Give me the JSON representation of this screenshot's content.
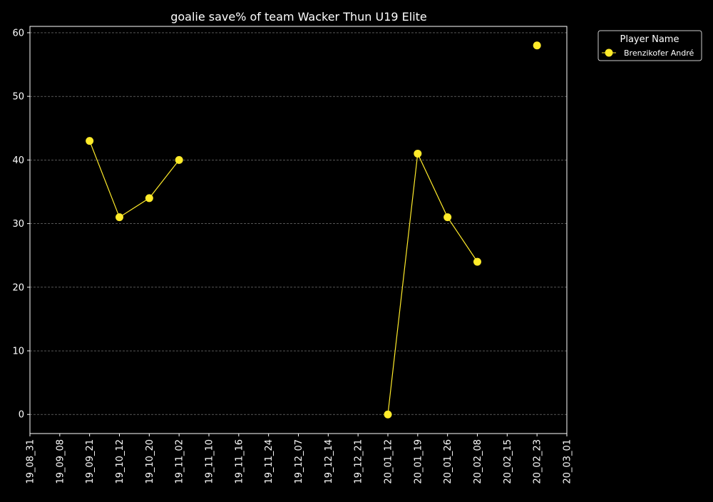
{
  "chart_data": {
    "type": "line",
    "title": "goalie save% of team Wacker Thun U19 Elite",
    "xlabel": "",
    "ylabel": "",
    "categories": [
      "19_08_31",
      "19_09_08",
      "19_09_21",
      "19_10_12",
      "19_10_20",
      "19_11_02",
      "19_11_10",
      "19_11_16",
      "19_11_24",
      "19_12_07",
      "19_12_14",
      "19_12_21",
      "20_01_12",
      "20_01_19",
      "20_01_26",
      "20_02_08",
      "20_02_15",
      "20_02_23",
      "20_03_01"
    ],
    "yticks": [
      0,
      10,
      20,
      30,
      40,
      50,
      60
    ],
    "ylim": [
      -3,
      61
    ],
    "grid": true,
    "legend": {
      "title": "Player Name",
      "placement": "outside-top-right"
    },
    "series": [
      {
        "name": "Brenzikofer André",
        "color": "#ffeb2a",
        "values": [
          null,
          null,
          43,
          31,
          34,
          40,
          null,
          null,
          null,
          null,
          null,
          null,
          0,
          41,
          31,
          24,
          null,
          58,
          null
        ]
      }
    ],
    "background": "#000000",
    "foreground": "#ffffff",
    "grid_color": "#888888"
  }
}
